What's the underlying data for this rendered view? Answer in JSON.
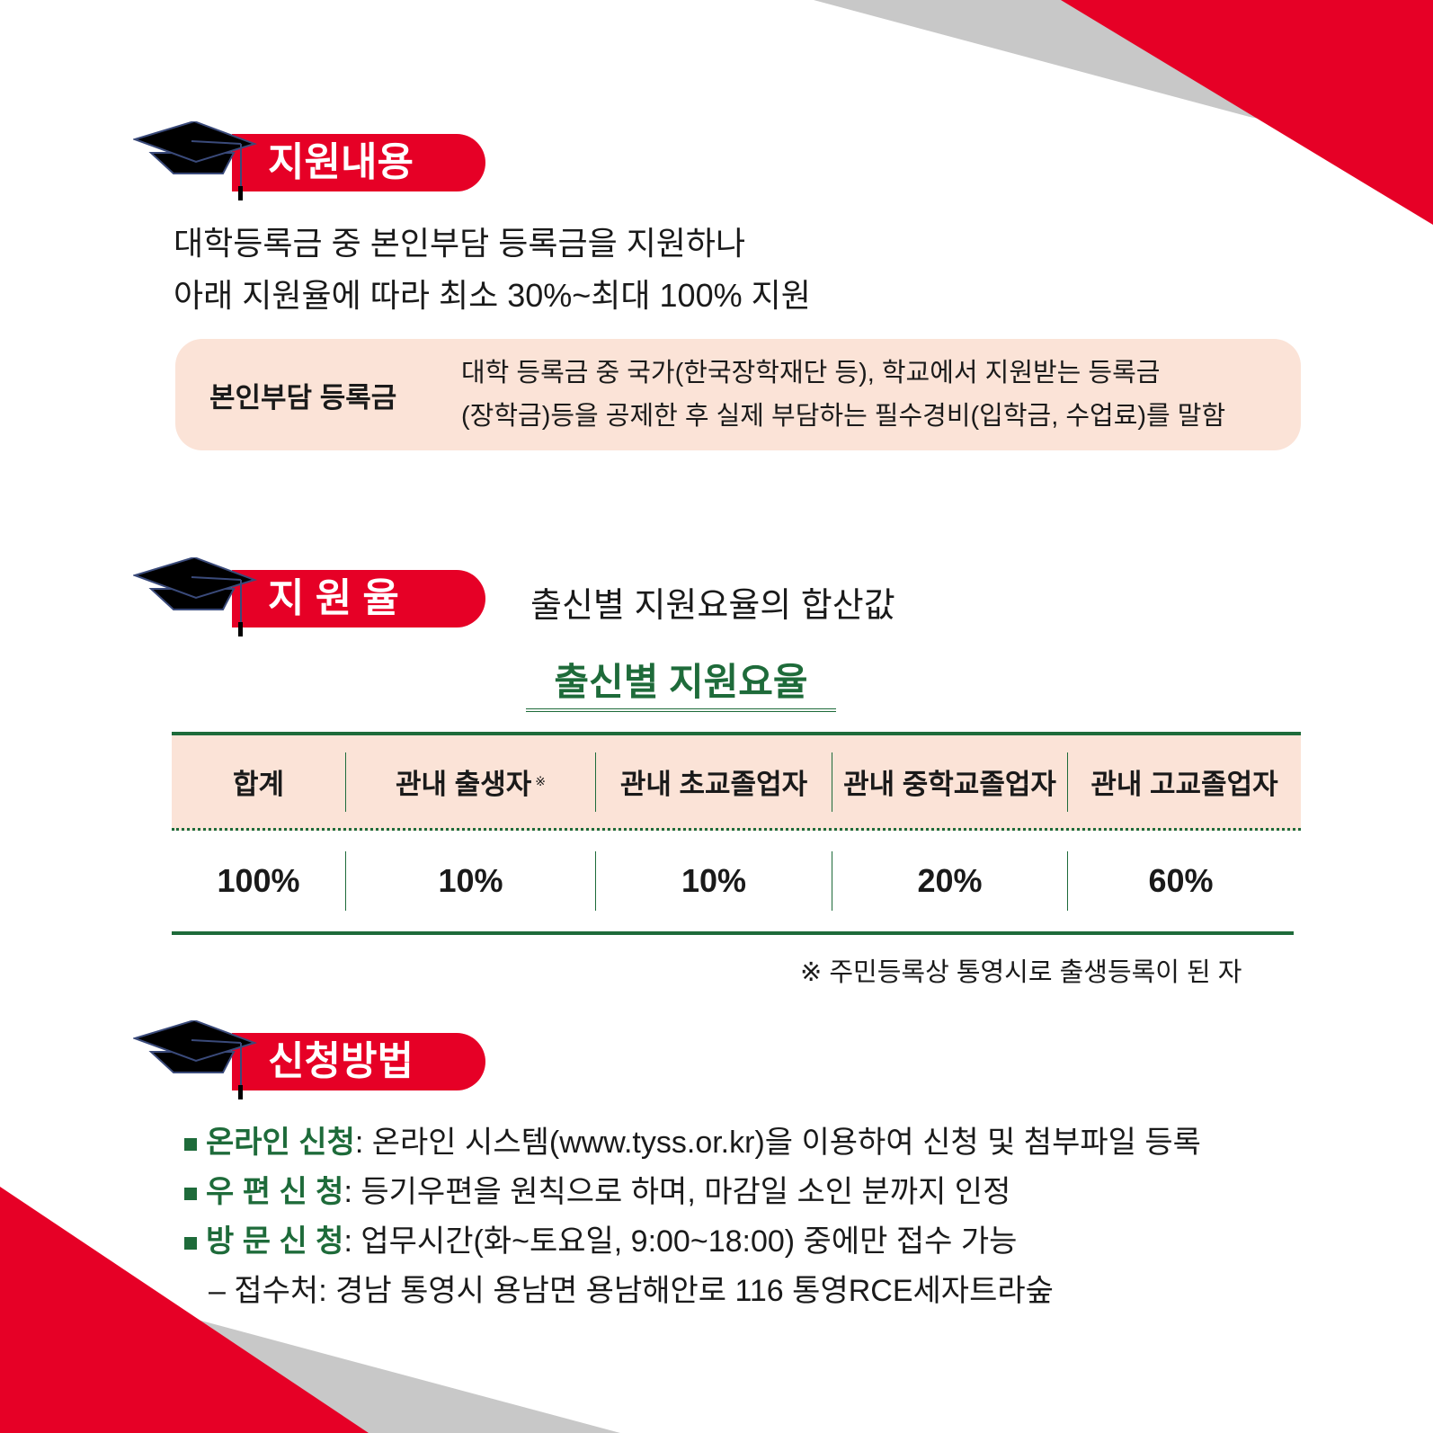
{
  "colors": {
    "accent_red": "#e60026",
    "gray": "#c8c8c8",
    "peach": "#fbe3d7",
    "green": "#1e6b3a"
  },
  "section1": {
    "title": "지원내용",
    "line1": "대학등록금 중 본인부담 등록금을 지원하나",
    "line2": "아래 지원율에 따라 최소 30%~최대 100% 지원",
    "definition": {
      "term": "본인부담 등록금",
      "line1": "대학 등록금 중 국가(한국장학재단 등), 학교에서 지원받는 등록금",
      "line2": "(장학금)등을 공제한 후 실제 부담하는 필수경비(입학금, 수업료)를 말함"
    }
  },
  "section2": {
    "title": "지 원 율",
    "subtitle": "출신별 지원요율의 합산값",
    "table_title": "출신별 지원요율",
    "headers": [
      "합계",
      "관내 출생자",
      "관내 초교졸업자",
      "관내 중학교졸업자",
      "관내 고교졸업자"
    ],
    "header_mark": "※",
    "values": [
      "100%",
      "10%",
      "10%",
      "20%",
      "60%"
    ],
    "footnote": "※ 주민등록상 통영시로 출생등록이 된 자"
  },
  "section3": {
    "title": "신청방법",
    "items": [
      {
        "label": "온라인 신청",
        "text": ": 온라인 시스템(www.tyss.or.kr)을 이용하여 신청 및 첨부파일 등록"
      },
      {
        "label": "우 편 신 청",
        "text": ": 등기우편을 원칙으로 하며, 마감일 소인 분까지 인정"
      },
      {
        "label": "방 문 신 청",
        "text": ": 업무시간(화~토요일, 9:00~18:00) 중에만 접수 가능"
      }
    ],
    "note": "– 접수처: 경남 통영시 용남면 용남해안로 116 통영RCE세자트라숲"
  }
}
